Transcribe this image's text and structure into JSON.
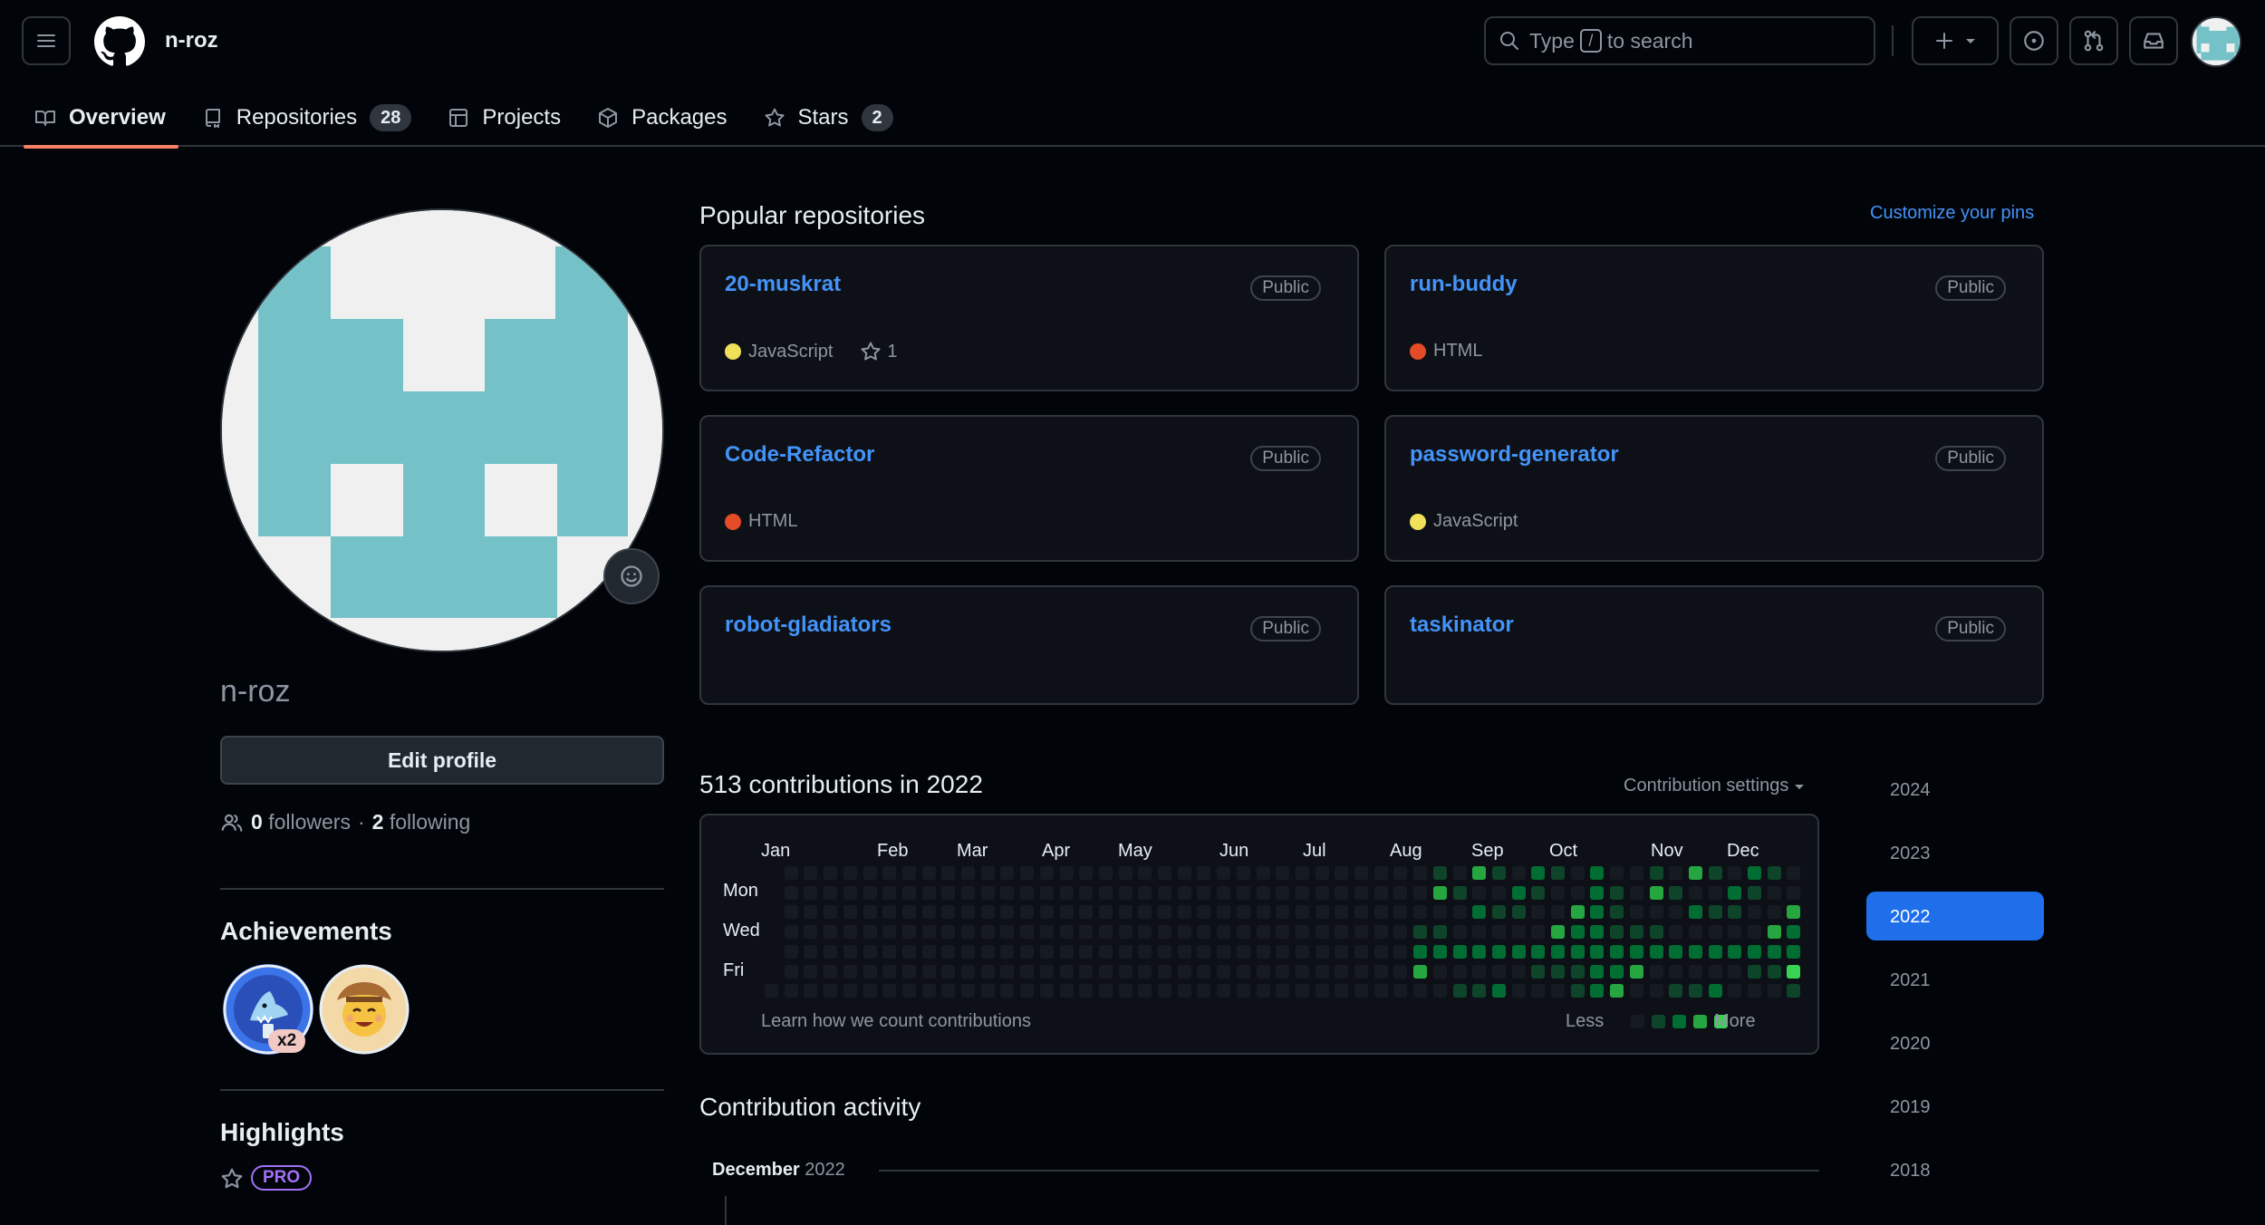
{
  "header": {
    "username": "n-roz",
    "search_prefix": "Type",
    "search_key": "/",
    "search_suffix": "to search"
  },
  "tabs": [
    {
      "label": "Overview",
      "count": null,
      "icon": "book-icon"
    },
    {
      "label": "Repositories",
      "count": "28",
      "icon": "repo-icon"
    },
    {
      "label": "Projects",
      "count": null,
      "icon": "table-icon"
    },
    {
      "label": "Packages",
      "count": null,
      "icon": "package-icon"
    },
    {
      "label": "Stars",
      "count": "2",
      "icon": "star-icon"
    }
  ],
  "profile": {
    "username": "n-roz",
    "edit_label": "Edit profile",
    "followers_count": "0",
    "followers_label": "followers",
    "separator": "·",
    "following_count": "2",
    "following_label": "following",
    "achievements_title": "Achievements",
    "achievement_multiplier": "x2",
    "highlights_title": "Highlights",
    "pro_label": "PRO"
  },
  "popular": {
    "title": "Popular repositories",
    "customize_label": "Customize your pins",
    "repos": [
      {
        "name": "20-muskrat",
        "visibility": "Public",
        "language": "JavaScript",
        "lang_color": "#f1e05a",
        "stars": "1"
      },
      {
        "name": "run-buddy",
        "visibility": "Public",
        "language": "HTML",
        "lang_color": "#e34c26",
        "stars": null
      },
      {
        "name": "Code-Refactor",
        "visibility": "Public",
        "language": "HTML",
        "lang_color": "#e34c26",
        "stars": null
      },
      {
        "name": "password-generator",
        "visibility": "Public",
        "language": "JavaScript",
        "lang_color": "#f1e05a",
        "stars": null
      },
      {
        "name": "robot-gladiators",
        "visibility": "Public",
        "language": null,
        "lang_color": null,
        "stars": null
      },
      {
        "name": "taskinator",
        "visibility": "Public",
        "language": null,
        "lang_color": null,
        "stars": null
      }
    ]
  },
  "contributions": {
    "title": "513 contributions in 2022",
    "settings_label": "Contribution settings",
    "months": [
      "Jan",
      "Feb",
      "Mar",
      "Apr",
      "May",
      "Jun",
      "Jul",
      "Aug",
      "Sep",
      "Oct",
      "Nov",
      "Dec"
    ],
    "days": [
      "Mon",
      "Wed",
      "Fri"
    ],
    "learn_label": "Learn how we count contributions",
    "less_label": "Less",
    "more_label": "More",
    "level_colors": [
      "#161b22",
      "#0e4429",
      "#006d32",
      "#26a641",
      "#39d353"
    ]
  },
  "years": [
    "2024",
    "2023",
    "2022",
    "2021",
    "2020",
    "2019",
    "2018"
  ],
  "active_year": "2022",
  "activity": {
    "title": "Contribution activity",
    "month": "December",
    "year": "2022"
  }
}
